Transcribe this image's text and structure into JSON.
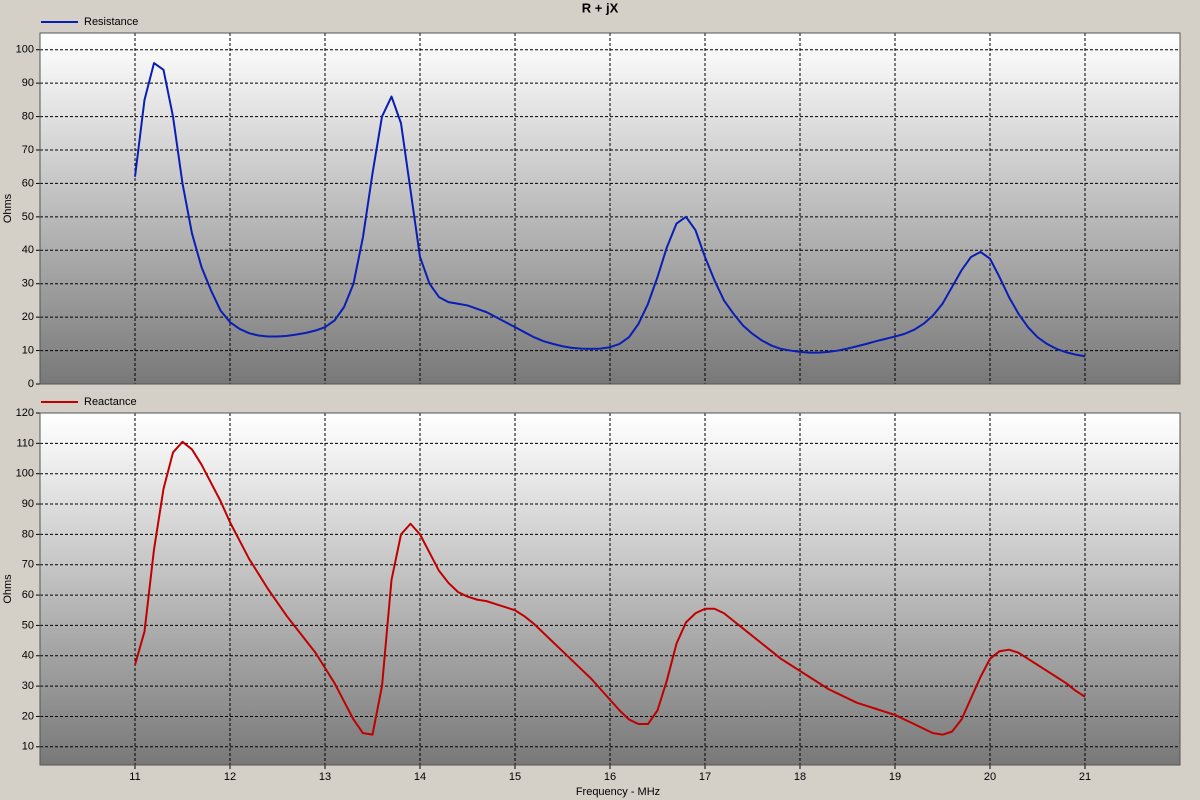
{
  "chart_data": [
    {
      "type": "line",
      "title": "R + jX",
      "ylabel": "Ohms",
      "x": [
        11,
        11.1,
        11.2,
        11.3,
        11.4,
        11.5,
        11.6,
        11.7,
        11.8,
        11.9,
        12,
        12.1,
        12.2,
        12.3,
        12.4,
        12.5,
        12.6,
        12.7,
        12.8,
        12.9,
        13,
        13.1,
        13.2,
        13.3,
        13.4,
        13.5,
        13.6,
        13.7,
        13.8,
        13.9,
        14,
        14.1,
        14.2,
        14.3,
        14.4,
        14.5,
        14.6,
        14.7,
        14.8,
        14.9,
        15,
        15.1,
        15.2,
        15.3,
        15.4,
        15.5,
        15.6,
        15.7,
        15.8,
        15.9,
        16,
        16.1,
        16.2,
        16.3,
        16.4,
        16.5,
        16.6,
        16.7,
        16.8,
        16.9,
        17,
        17.1,
        17.2,
        17.3,
        17.4,
        17.5,
        17.6,
        17.7,
        17.8,
        17.9,
        18,
        18.1,
        18.2,
        18.3,
        18.4,
        18.5,
        18.6,
        18.7,
        18.8,
        18.9,
        19,
        19.1,
        19.2,
        19.3,
        19.4,
        19.5,
        19.6,
        19.7,
        19.8,
        19.9,
        20,
        20.1,
        20.2,
        20.3,
        20.4,
        20.5,
        20.6,
        20.7,
        20.8,
        20.9,
        21
      ],
      "series": [
        {
          "name": "Resistance",
          "color": "#0a1eb4",
          "values": [
            62,
            85,
            96,
            94,
            80,
            60,
            45,
            35,
            28,
            22,
            18.5,
            16.5,
            15.2,
            14.5,
            14.2,
            14.2,
            14.4,
            14.8,
            15.3,
            16,
            17,
            19,
            23,
            30,
            44,
            63,
            80,
            86,
            78,
            58,
            38,
            30,
            26,
            24.5,
            24,
            23.5,
            22.5,
            21.5,
            20,
            18.5,
            17,
            15.5,
            14,
            12.8,
            12,
            11.3,
            10.8,
            10.6,
            10.5,
            10.6,
            11,
            12,
            14,
            18,
            24,
            32,
            41,
            48,
            50,
            46,
            38,
            31,
            25,
            21,
            17.5,
            15,
            13,
            11.5,
            10.5,
            10,
            9.6,
            9.4,
            9.4,
            9.6,
            10,
            10.6,
            11.3,
            12,
            12.8,
            13.5,
            14.2,
            15,
            16.2,
            18,
            20.5,
            24,
            29,
            34,
            38,
            39.5,
            37.5,
            32,
            26,
            21,
            17,
            14,
            12,
            10.5,
            9.5,
            8.8,
            8.3
          ]
        }
      ],
      "xlim": [
        10,
        22
      ],
      "xticks": [
        11,
        12,
        13,
        14,
        15,
        16,
        17,
        18,
        19,
        20,
        21
      ],
      "ylim": [
        0,
        105
      ],
      "yticks": [
        0,
        10,
        20,
        30,
        40,
        50,
        60,
        70,
        80,
        90,
        100
      ],
      "grid": true
    },
    {
      "type": "line",
      "ylabel": "Ohms",
      "xlabel": "Frequency - MHz",
      "x": [
        11,
        11.1,
        11.2,
        11.3,
        11.4,
        11.5,
        11.6,
        11.7,
        11.8,
        11.9,
        12,
        12.1,
        12.2,
        12.3,
        12.4,
        12.5,
        12.6,
        12.7,
        12.8,
        12.9,
        13,
        13.1,
        13.2,
        13.3,
        13.4,
        13.5,
        13.6,
        13.7,
        13.8,
        13.9,
        14,
        14.1,
        14.2,
        14.3,
        14.4,
        14.5,
        14.6,
        14.7,
        14.8,
        14.9,
        15,
        15.1,
        15.2,
        15.3,
        15.4,
        15.5,
        15.6,
        15.7,
        15.8,
        15.9,
        16,
        16.1,
        16.2,
        16.3,
        16.4,
        16.5,
        16.6,
        16.7,
        16.8,
        16.9,
        17,
        17.1,
        17.2,
        17.3,
        17.4,
        17.5,
        17.6,
        17.7,
        17.8,
        17.9,
        18,
        18.1,
        18.2,
        18.3,
        18.4,
        18.5,
        18.6,
        18.7,
        18.8,
        18.9,
        19,
        19.1,
        19.2,
        19.3,
        19.4,
        19.5,
        19.6,
        19.7,
        19.8,
        19.9,
        20,
        20.1,
        20.2,
        20.3,
        20.4,
        20.5,
        20.6,
        20.7,
        20.8,
        20.9,
        21
      ],
      "series": [
        {
          "name": "Reactance",
          "color": "#c00000",
          "values": [
            37,
            48,
            75,
            95,
            107,
            110.5,
            108,
            103,
            97,
            91,
            84,
            78,
            72,
            67,
            62,
            57.5,
            53,
            49,
            45,
            41,
            36,
            31,
            25,
            19,
            14.5,
            14,
            30,
            65,
            80,
            83.5,
            80,
            74,
            68,
            64,
            61,
            59.5,
            58.5,
            58,
            57,
            56,
            55,
            53,
            50.5,
            47.5,
            44.5,
            41.5,
            38.5,
            35.5,
            32.5,
            29,
            25.5,
            22,
            19,
            17.5,
            17.5,
            22,
            32,
            44,
            51,
            54,
            55.5,
            55.5,
            54,
            51.5,
            49,
            46.5,
            44,
            41.5,
            39,
            37,
            35,
            33,
            31,
            29,
            27.5,
            26,
            24.5,
            23.5,
            22.5,
            21.5,
            20.5,
            19,
            17.5,
            16,
            14.5,
            14,
            15,
            19,
            26,
            33,
            39,
            41.5,
            42,
            41,
            39,
            37,
            35,
            33,
            31,
            28.5,
            26.5
          ]
        }
      ],
      "xlim": [
        10,
        22
      ],
      "xticks": [
        11,
        12,
        13,
        14,
        15,
        16,
        17,
        18,
        19,
        20,
        21
      ],
      "ylim": [
        4,
        120
      ],
      "yticks": [
        10,
        20,
        30,
        40,
        50,
        60,
        70,
        80,
        90,
        100,
        110,
        120
      ],
      "grid": true
    }
  ]
}
